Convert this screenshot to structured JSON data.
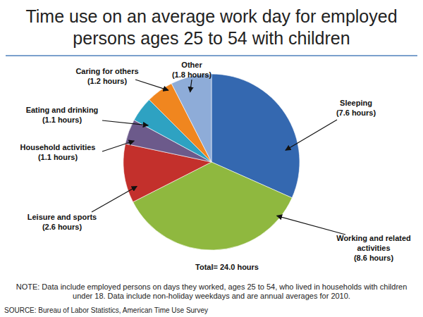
{
  "chart_data": {
    "type": "pie",
    "title": "Time use on an average work day for employed persons ages 25 to 54 with children",
    "categories": [
      "Sleeping",
      "Working and related activities",
      "Leisure and sports",
      "Household activities",
      "Eating and drinking",
      "Caring for others",
      "Other"
    ],
    "values": [
      7.6,
      8.6,
      2.6,
      1.1,
      1.1,
      1.2,
      1.8
    ],
    "value_labels": [
      "(7.6 hours)",
      "(8.6 hours)",
      "(2.6 hours)",
      "(1.1 hours)",
      "(1.1 hours)",
      "(1.2 hours)",
      "(1.8 hours)"
    ],
    "colors": [
      "#3468b0",
      "#8fb83f",
      "#c3302c",
      "#6c5a8b",
      "#2ea2c2",
      "#f0861f",
      "#8eacd8"
    ],
    "data_labels": true,
    "annotations": [
      "Total= 24.0 hours"
    ],
    "note": "NOTE: Data include employed persons on days they worked, ages 25 to 54, who lived in households with children under 18. Data include non-holiday weekdays and are annual averages for 2010.",
    "source": "SOURCE: Bureau of Labor Statistics, American Time Use Survey"
  }
}
